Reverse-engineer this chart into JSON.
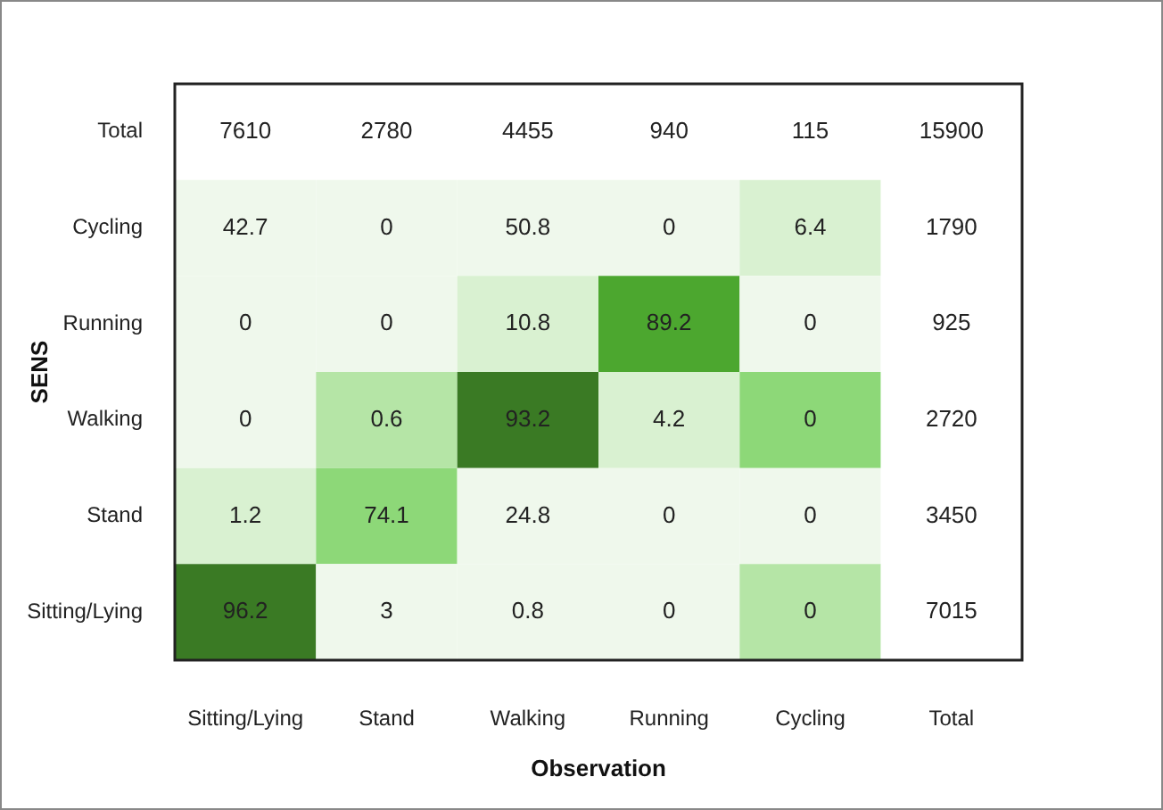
{
  "chart_data": {
    "type": "heatmap",
    "xlabel": "Observation",
    "ylabel": "SENS",
    "categories": [
      "Sitting/Lying",
      "Stand",
      "Walking",
      "Running",
      "Cycling",
      "Total"
    ],
    "y_categories": [
      "Total",
      "Cycling",
      "Running",
      "Walking",
      "Stand",
      "Sitting/Lying"
    ],
    "cells": [
      [
        7610,
        2780,
        4455,
        940,
        115,
        15900
      ],
      [
        42.7,
        0,
        50.8,
        0,
        6.4,
        1790
      ],
      [
        0,
        0,
        10.8,
        89.2,
        0,
        925
      ],
      [
        0,
        0.6,
        93.2,
        4.2,
        0,
        2720
      ],
      [
        1.2,
        74.1,
        24.8,
        0,
        0,
        3450
      ],
      [
        96.2,
        3,
        0.8,
        0,
        0,
        7015
      ]
    ],
    "colors": [
      [
        "#ffffff",
        "#ffffff",
        "#ffffff",
        "#ffffff",
        "#ffffff",
        "#ffffff"
      ],
      [
        "#eff8ec",
        "#eff8ec",
        "#eff8ec",
        "#eff8ec",
        "#d9f1d1",
        "#ffffff"
      ],
      [
        "#eff8ec",
        "#eff8ec",
        "#d9f1d1",
        "#4ca72f",
        "#eff8ec",
        "#ffffff"
      ],
      [
        "#eff8ec",
        "#b5e5a6",
        "#3a7a24",
        "#d9f1d1",
        "#8dd878",
        "#ffffff"
      ],
      [
        "#d9f1d1",
        "#8dd878",
        "#eff8ec",
        "#eff8ec",
        "#eff8ec",
        "#ffffff"
      ],
      [
        "#3a7a24",
        "#eff8ec",
        "#eff8ec",
        "#eff8ec",
        "#b5e5a6",
        "#ffffff"
      ]
    ],
    "data_labels": true
  }
}
